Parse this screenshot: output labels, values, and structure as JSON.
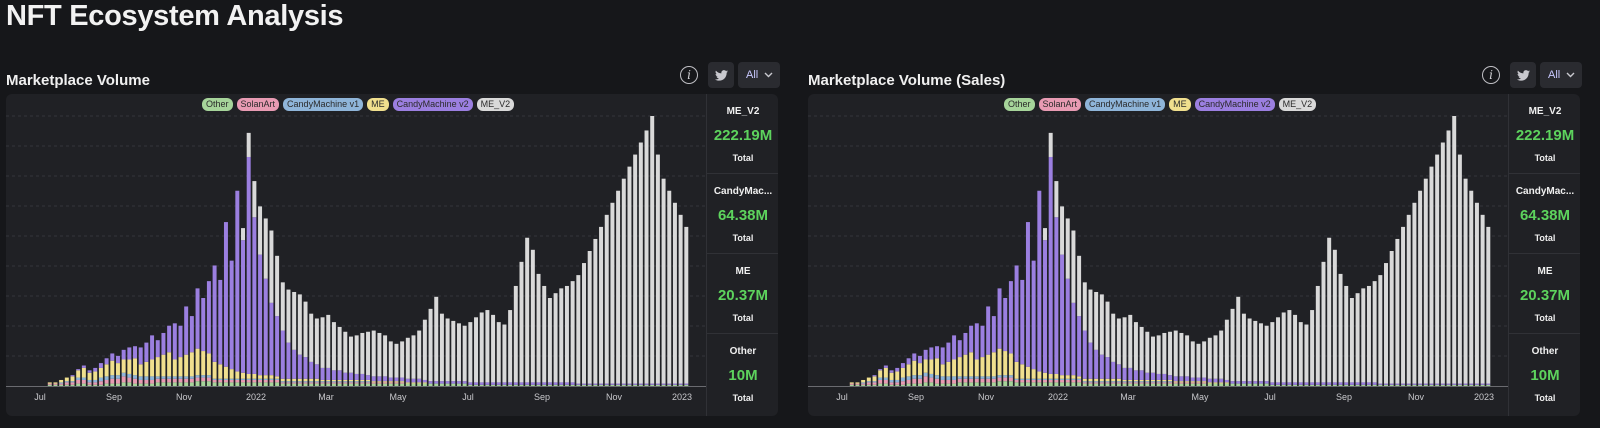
{
  "page_title": "NFT Ecosystem Analysis",
  "panels": [
    {
      "title": "Marketplace Volume",
      "range": "All",
      "legend": [
        {
          "label": "Other",
          "color": "#a6d49a"
        },
        {
          "label": "SolanArt",
          "color": "#e89bb3"
        },
        {
          "label": "CandyMachine v1",
          "color": "#8fb5d9"
        },
        {
          "label": "ME",
          "color": "#f0df8e"
        },
        {
          "label": "CandyMachine v2",
          "color": "#9b7fe0"
        },
        {
          "label": "ME_V2",
          "color": "#d9d9d9"
        }
      ],
      "stats": [
        {
          "name": "ME_V2",
          "value": "222.19M",
          "sub": "Total"
        },
        {
          "name": "CandyMac...",
          "value": "64.38M",
          "sub": "Total"
        },
        {
          "name": "ME",
          "value": "20.37M",
          "sub": "Total"
        },
        {
          "name": "Other",
          "value": "10M",
          "sub": "Total"
        }
      ]
    },
    {
      "title": "Marketplace Volume (Sales)",
      "range": "All",
      "legend": [
        {
          "label": "Other",
          "color": "#a6d49a"
        },
        {
          "label": "SolanArt",
          "color": "#e89bb3"
        },
        {
          "label": "CandyMachine v1",
          "color": "#8fb5d9"
        },
        {
          "label": "ME",
          "color": "#f0df8e"
        },
        {
          "label": "CandyMachine v2",
          "color": "#9b7fe0"
        },
        {
          "label": "ME_V2",
          "color": "#d9d9d9"
        }
      ],
      "stats": [
        {
          "name": "ME_V2",
          "value": "222.19M",
          "sub": "Total"
        },
        {
          "name": "CandyMac...",
          "value": "64.38M",
          "sub": "Total"
        },
        {
          "name": "ME",
          "value": "20.37M",
          "sub": "Total"
        },
        {
          "name": "Other",
          "value": "10M",
          "sub": "Total"
        }
      ]
    }
  ],
  "chart_data": {
    "type": "bar",
    "stacked": true,
    "x_ticks": [
      "Jul",
      "Sep",
      "Nov",
      "2022",
      "Mar",
      "May",
      "Jul",
      "Sep",
      "Nov",
      "2023"
    ],
    "grid": true,
    "legend_position": "top",
    "series": [
      {
        "name": "Other",
        "color": "#a6d49a",
        "values": [
          0,
          0,
          0,
          0,
          0,
          0,
          0,
          1,
          1,
          1,
          1,
          1,
          2,
          2,
          1,
          1,
          1,
          2,
          2,
          2,
          3,
          3,
          2,
          2,
          2,
          2,
          3,
          3,
          3,
          3,
          3,
          3,
          3,
          4,
          4,
          4,
          3,
          3,
          3,
          3,
          3,
          3,
          3,
          3,
          3,
          3,
          3,
          3,
          2,
          2,
          2,
          2,
          2,
          2,
          2,
          2,
          2,
          2,
          2,
          2,
          2,
          2,
          2,
          2,
          2,
          2,
          2,
          2,
          2,
          2,
          2,
          2,
          2,
          2,
          2,
          2,
          2,
          2,
          2,
          2,
          2,
          1,
          1,
          1,
          1,
          1,
          1,
          1,
          1,
          1,
          1,
          1,
          1,
          1,
          1,
          1,
          1,
          1,
          1,
          1,
          1,
          1,
          1,
          1,
          1,
          1,
          1,
          1,
          1,
          1,
          1,
          1,
          1,
          1,
          1,
          1,
          1,
          1,
          1,
          1
        ]
      },
      {
        "name": "SolanArt",
        "color": "#e89bb3",
        "values": [
          0,
          0,
          0,
          0,
          0,
          0,
          0,
          1,
          1,
          1,
          2,
          2,
          3,
          3,
          2,
          2,
          3,
          3,
          4,
          4,
          5,
          4,
          4,
          3,
          3,
          3,
          3,
          3,
          3,
          3,
          3,
          3,
          3,
          3,
          3,
          3,
          2,
          2,
          2,
          2,
          2,
          2,
          2,
          2,
          2,
          2,
          2,
          2,
          1,
          1,
          1,
          1,
          1,
          1,
          1,
          1,
          1,
          1,
          1,
          1,
          1,
          1,
          1,
          1,
          1,
          1,
          1,
          1,
          1,
          1,
          0,
          0,
          0,
          0,
          0,
          0,
          0,
          0,
          0,
          0,
          0,
          0,
          0,
          0,
          0,
          0,
          0,
          0,
          0,
          0,
          0,
          0,
          0,
          0,
          0,
          0,
          0,
          0,
          0,
          0,
          0,
          0,
          0,
          0,
          0,
          0,
          0,
          0,
          0,
          0,
          0,
          0,
          0,
          0,
          0,
          0,
          0,
          0,
          0,
          0
        ]
      },
      {
        "name": "CandyMachine v1",
        "color": "#8fb5d9",
        "values": [
          0,
          0,
          0,
          0,
          0,
          0,
          0,
          0,
          0,
          1,
          1,
          1,
          2,
          2,
          2,
          2,
          3,
          3,
          3,
          3,
          3,
          3,
          3,
          3,
          3,
          3,
          2,
          2,
          2,
          2,
          2,
          2,
          2,
          2,
          2,
          2,
          1,
          1,
          1,
          1,
          1,
          1,
          1,
          1,
          1,
          1,
          1,
          1,
          1,
          1,
          1,
          1,
          1,
          1,
          1,
          1,
          1,
          1,
          1,
          1,
          1,
          1,
          1,
          1,
          0,
          0,
          0,
          0,
          0,
          0,
          0,
          0,
          0,
          0,
          0,
          0,
          0,
          0,
          0,
          0,
          0,
          0,
          0,
          0,
          0,
          0,
          0,
          0,
          0,
          0,
          0,
          0,
          0,
          0,
          0,
          0,
          0,
          0,
          0,
          0,
          0,
          0,
          0,
          0,
          0,
          0,
          0,
          0,
          0,
          0,
          0,
          0,
          0,
          0,
          0,
          0,
          0,
          0,
          0,
          0
        ]
      },
      {
        "name": "ME",
        "color": "#f0df8e",
        "values": [
          0,
          0,
          0,
          0,
          0,
          0,
          0,
          1,
          1,
          2,
          3,
          4,
          6,
          8,
          6,
          7,
          8,
          10,
          12,
          10,
          11,
          12,
          14,
          10,
          12,
          14,
          16,
          18,
          20,
          14,
          16,
          18,
          20,
          22,
          20,
          18,
          14,
          12,
          10,
          8,
          6,
          5,
          4,
          4,
          3,
          3,
          3,
          2,
          2,
          2,
          2,
          2,
          2,
          2,
          2,
          1,
          1,
          1,
          1,
          1,
          1,
          1,
          1,
          1,
          1,
          1,
          1,
          1,
          1,
          1,
          1,
          1,
          1,
          1,
          0,
          0,
          0,
          0,
          0,
          0,
          0,
          0,
          0,
          0,
          0,
          0,
          0,
          0,
          0,
          0,
          0,
          0,
          0,
          0,
          0,
          0,
          0,
          0,
          0,
          0,
          0,
          0,
          0,
          0,
          0,
          0,
          0,
          0,
          0,
          0,
          0,
          0,
          0,
          0,
          0,
          0,
          0,
          0,
          0,
          0
        ]
      },
      {
        "name": "CandyMachine v2",
        "color": "#9b7fe0",
        "values": [
          0,
          0,
          0,
          0,
          0,
          0,
          0,
          0,
          0,
          0,
          0,
          1,
          1,
          2,
          2,
          3,
          4,
          5,
          6,
          6,
          8,
          10,
          10,
          14,
          16,
          20,
          14,
          18,
          22,
          30,
          26,
          40,
          30,
          50,
          44,
          60,
          80,
          70,
          120,
          90,
          150,
          110,
          180,
          130,
          100,
          80,
          60,
          50,
          40,
          30,
          24,
          20,
          18,
          14,
          12,
          10,
          10,
          8,
          8,
          6,
          6,
          5,
          5,
          4,
          4,
          4,
          4,
          3,
          3,
          3,
          3,
          3,
          3,
          2,
          2,
          2,
          2,
          2,
          2,
          2,
          2,
          2,
          2,
          2,
          2,
          2,
          2,
          2,
          2,
          2,
          2,
          2,
          2,
          2,
          2,
          2,
          2,
          2,
          2,
          2,
          1,
          1,
          1,
          1,
          1,
          1,
          1,
          1,
          1,
          1,
          1,
          1,
          1,
          1,
          1,
          1,
          1,
          1,
          1,
          1
        ]
      },
      {
        "name": "ME_V2",
        "color": "#d9d9d9",
        "values": [
          0,
          0,
          0,
          0,
          0,
          0,
          0,
          0,
          0,
          0,
          0,
          0,
          0,
          0,
          0,
          0,
          0,
          0,
          0,
          0,
          0,
          0,
          0,
          0,
          0,
          0,
          0,
          0,
          0,
          0,
          0,
          0,
          0,
          0,
          0,
          0,
          0,
          0,
          0,
          0,
          0,
          10,
          20,
          30,
          40,
          50,
          60,
          50,
          40,
          44,
          48,
          50,
          46,
          40,
          38,
          42,
          44,
          40,
          36,
          34,
          30,
          32,
          34,
          36,
          38,
          36,
          34,
          30,
          28,
          30,
          34,
          36,
          40,
          50,
          60,
          70,
          56,
          52,
          50,
          48,
          46,
          50,
          54,
          58,
          60,
          56,
          50,
          48,
          60,
          80,
          100,
          120,
          110,
          90,
          80,
          70,
          74,
          78,
          80,
          84,
          90,
          100,
          110,
          120,
          130,
          140,
          150,
          160,
          170,
          180,
          190,
          200,
          210,
          222,
          190,
          170,
          160,
          150,
          140,
          130
        ]
      }
    ]
  }
}
